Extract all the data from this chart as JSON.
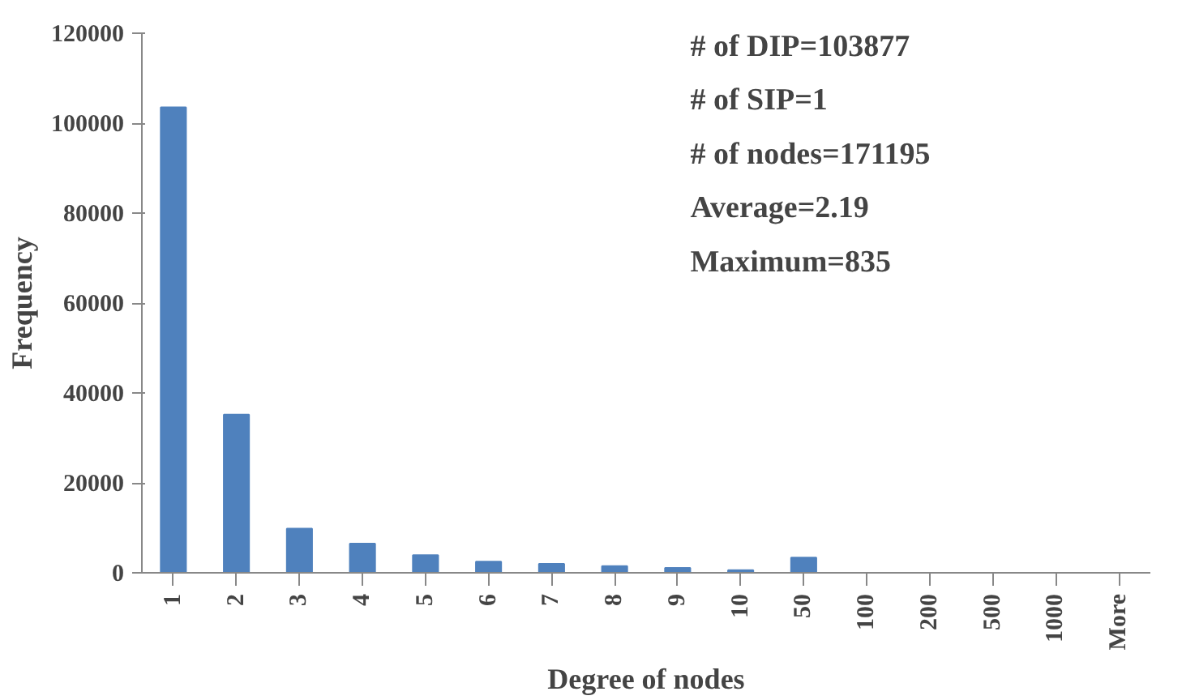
{
  "chart_data": {
    "type": "bar",
    "xlabel": "Degree of nodes",
    "ylabel": "Frequency",
    "categories": [
      "1",
      "2",
      "3",
      "4",
      "5",
      "6",
      "7",
      "8",
      "9",
      "10",
      "50",
      "100",
      "200",
      "500",
      "1000",
      "More"
    ],
    "values": [
      103500,
      35200,
      9800,
      6500,
      3900,
      2500,
      2000,
      1500,
      1100,
      600,
      3400,
      0,
      0,
      0,
      0,
      0
    ],
    "color": "#4f81bd",
    "ylim": [
      0,
      120000
    ],
    "yticks": [
      0,
      20000,
      40000,
      60000,
      80000,
      100000,
      120000
    ],
    "grid": false,
    "annotations": [
      "# of DIP=103877",
      "# of SIP=1",
      "# of nodes=171195",
      "Average=2.19",
      "Maximum=835"
    ]
  }
}
